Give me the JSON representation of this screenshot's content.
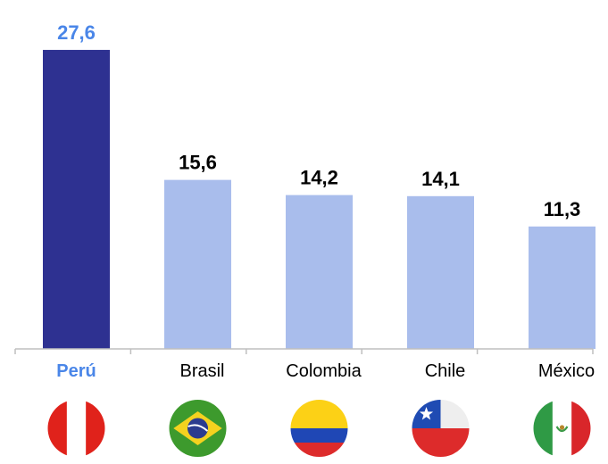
{
  "chart_data": {
    "type": "bar",
    "categories": [
      "Perú",
      "Brasil",
      "Colombia",
      "Chile",
      "México"
    ],
    "values": [
      27.6,
      15.6,
      14.2,
      14.1,
      11.3
    ],
    "value_labels": [
      "27,6",
      "15,6",
      "14,2",
      "14,1",
      "11,3"
    ],
    "highlight_index": 0,
    "colors": {
      "highlight_bar": "#2e3191",
      "bar": "#a9bdec",
      "highlight_text": "#4a86e8",
      "text": "#000000",
      "axis": "#bfbfbf"
    },
    "grid": false,
    "legend": "none",
    "ylim": [
      0,
      28.5
    ],
    "flags": [
      "peru-flag-icon",
      "brazil-flag-icon",
      "colombia-flag-icon",
      "chile-flag-icon",
      "mexico-flag-icon"
    ]
  }
}
